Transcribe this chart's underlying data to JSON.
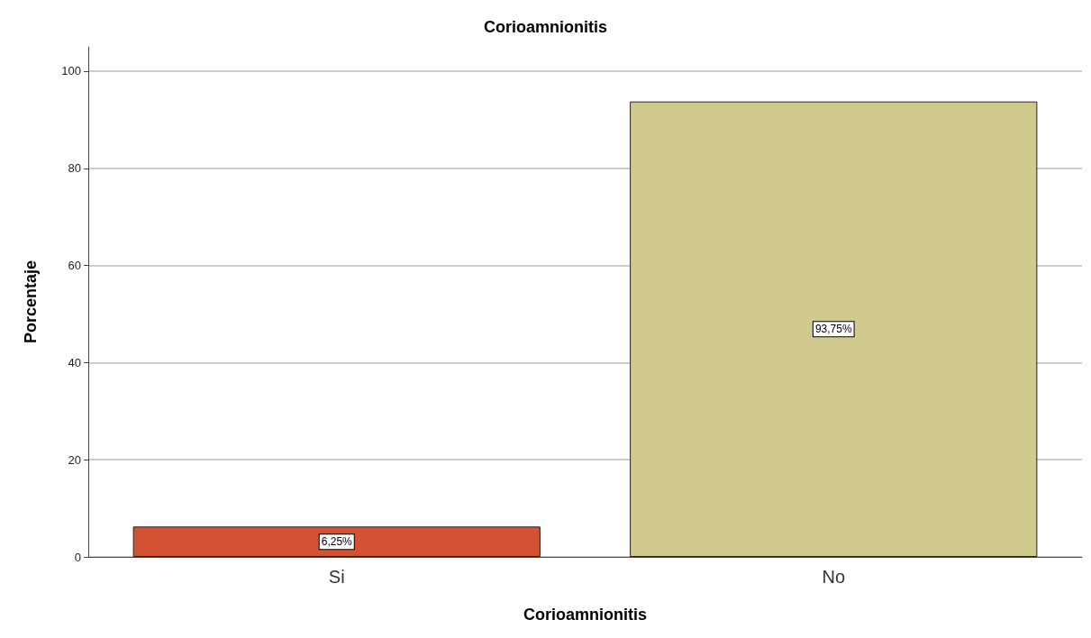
{
  "chart_data": {
    "type": "bar",
    "title": "Corioamnionitis",
    "xlabel": "Corioamnionitis",
    "ylabel": "Porcentaje",
    "categories": [
      "Si",
      "No"
    ],
    "values": [
      6.25,
      93.75
    ],
    "colors": [
      "#d35233",
      "#d0ca8e"
    ],
    "value_labels": [
      "6,25%",
      "93,75%"
    ],
    "ylim": [
      0,
      105
    ],
    "yticks": [
      0,
      20,
      40,
      60,
      80,
      100
    ],
    "grid": "y"
  }
}
